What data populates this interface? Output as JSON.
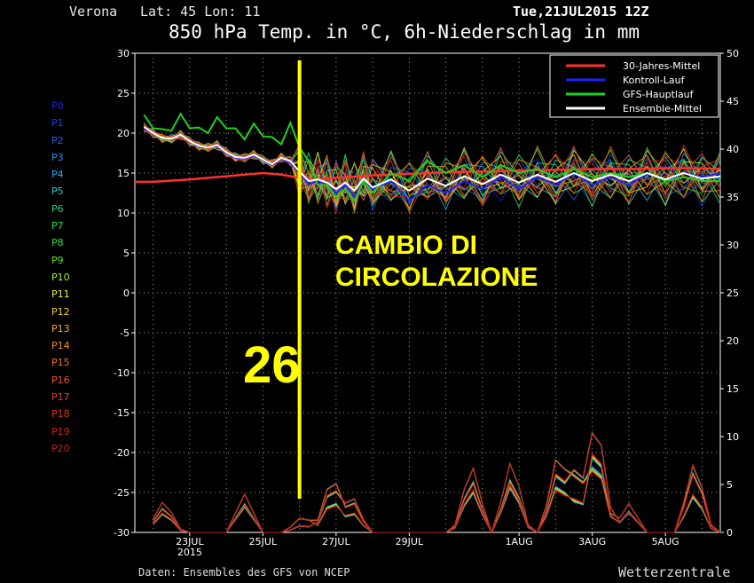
{
  "header": {
    "location": "Verona",
    "coords": "Lat: 45 Lon: 11",
    "date": "Tue,21JUL2015 12Z",
    "title": "850 hPa Temp. in °C, 6h-Niederschlag in mm"
  },
  "footer": {
    "source": "Daten: Ensembles des GFS von NCEP",
    "brand": "Wetterzentrale"
  },
  "annotations": {
    "big_number": "26",
    "text_line1": "CAMBIO DI",
    "text_line2": "CIRCOLAZIONE",
    "marker_date": "26JUL",
    "color": "#ffff00"
  },
  "members": [
    {
      "label": "P0",
      "color": "#2020d0"
    },
    {
      "label": "P1",
      "color": "#2040e0"
    },
    {
      "label": "P2",
      "color": "#2060f0"
    },
    {
      "label": "P3",
      "color": "#2090f0"
    },
    {
      "label": "P4",
      "color": "#20b0f0"
    },
    {
      "label": "P5",
      "color": "#20d0d0"
    },
    {
      "label": "P6",
      "color": "#20d080"
    },
    {
      "label": "P7",
      "color": "#20e050"
    },
    {
      "label": "P8",
      "color": "#30e030"
    },
    {
      "label": "P9",
      "color": "#60e020"
    },
    {
      "label": "P10",
      "color": "#a0f020"
    },
    {
      "label": "P11",
      "color": "#f0f020"
    },
    {
      "label": "P12",
      "color": "#f0d020"
    },
    {
      "label": "P13",
      "color": "#f0b020"
    },
    {
      "label": "P14",
      "color": "#f09020"
    },
    {
      "label": "P15",
      "color": "#f07020"
    },
    {
      "label": "P16",
      "color": "#f05020"
    },
    {
      "label": "P17",
      "color": "#e04020"
    },
    {
      "label": "P18",
      "color": "#e03020"
    },
    {
      "label": "P19",
      "color": "#d02020"
    },
    {
      "label": "P20",
      "color": "#c02020"
    }
  ],
  "chart_data": {
    "type": "line",
    "left_axis": {
      "label": "850 hPa Temp. (°C)",
      "range": [
        -30,
        30
      ],
      "ticks": [
        -30,
        -25,
        -20,
        -15,
        -10,
        -5,
        0,
        5,
        10,
        15,
        20,
        25,
        30
      ]
    },
    "right_axis": {
      "label": "6h-Niederschlag (mm)",
      "range": [
        0,
        50
      ],
      "ticks": [
        0,
        5,
        10,
        15,
        20,
        25,
        30,
        35,
        40,
        45,
        50
      ]
    },
    "x_ticks": [
      {
        "day": 23,
        "label": "23JUL",
        "sub": "2015"
      },
      {
        "day": 25,
        "label": "25JUL",
        "sub": ""
      },
      {
        "day": 27,
        "label": "27JUL",
        "sub": ""
      },
      {
        "day": 29,
        "label": "29JUL",
        "sub": ""
      },
      {
        "day": 32,
        "label": "1AUG",
        "sub": ""
      },
      {
        "day": 34,
        "label": "3AUG",
        "sub": ""
      },
      {
        "day": 36,
        "label": "5AUG",
        "sub": ""
      }
    ],
    "x_range_days": [
      21.5,
      37.5
    ],
    "x_unit": "day of July 2015",
    "grid": true,
    "legend_position": "top-right",
    "series": [
      {
        "name": "30-Jahres-Mittel",
        "color": "#ff3030",
        "x": [
          21.5,
          22,
          23,
          24,
          25,
          25.5,
          26,
          26.5,
          27,
          28,
          29,
          30,
          31,
          32,
          33,
          34,
          35,
          36,
          37,
          37.5
        ],
        "y": [
          13.9,
          13.9,
          14.2,
          14.6,
          15.0,
          14.8,
          14.4,
          14.2,
          14.4,
          14.7,
          14.9,
          15.1,
          15.2,
          15.3,
          15.4,
          15.5,
          15.5,
          15.6,
          15.6,
          15.5
        ]
      },
      {
        "name": "Kontroll-Lauf",
        "color": "#2020ff",
        "x": [
          21.75,
          22,
          22.25,
          22.5,
          22.75,
          23,
          23.25,
          23.5,
          23.75,
          24,
          24.25,
          24.5,
          24.75,
          25,
          25.25,
          25.5,
          25.75,
          26,
          26.25,
          26.5,
          26.75,
          27,
          27.25,
          27.5,
          27.75,
          28,
          28.5,
          29,
          29.5,
          30,
          30.5,
          31,
          31.5,
          32,
          32.5,
          33,
          33.5,
          34,
          34.5,
          35,
          35.5,
          36,
          36.5,
          37,
          37.5
        ],
        "y": [
          20.6,
          20.0,
          19.4,
          19.3,
          19.8,
          19.0,
          18.3,
          18.2,
          18.4,
          17.5,
          16.9,
          16.8,
          17.2,
          16.6,
          16.0,
          16.8,
          16.3,
          15.0,
          13.6,
          14.0,
          13.5,
          12.5,
          13.5,
          12.0,
          14.0,
          13.0,
          14.0,
          11.5,
          13.5,
          12.5,
          14.0,
          13.0,
          14.5,
          13.0,
          14.5,
          13.5,
          15.0,
          13.5,
          14.5,
          13.5,
          15.0,
          14.0,
          15.0,
          14.5,
          15.0
        ]
      },
      {
        "name": "GFS-Hauptlauf",
        "color": "#20d020",
        "x": [
          21.75,
          22,
          22.25,
          22.5,
          22.75,
          23,
          23.25,
          23.5,
          23.75,
          24,
          24.25,
          24.5,
          24.75,
          25,
          25.25,
          25.5,
          25.75,
          26,
          26.25,
          26.5,
          26.75,
          27,
          27.25,
          27.5,
          27.75,
          28,
          28.5,
          29,
          29.5,
          30,
          30.5,
          31,
          31.5,
          32,
          32.5,
          33,
          33.5,
          34,
          34.5,
          35,
          35.5,
          36,
          36.5,
          37,
          37.5
        ],
        "y": [
          22.3,
          20.6,
          20.5,
          20.3,
          22.4,
          20.6,
          20.7,
          20.0,
          22.0,
          20.6,
          20.6,
          19.2,
          21.2,
          19.6,
          19.5,
          18.6,
          21.3,
          18.2,
          16.5,
          13.5,
          13.5,
          12.0,
          13.0,
          11.5,
          14.0,
          12.5,
          15.0,
          14.0,
          16.5,
          15.0,
          16.0,
          14.5,
          16.0,
          15.0,
          15.5,
          14.5,
          15.5,
          14.5,
          15.0,
          14.5,
          15.0,
          14.0,
          14.5,
          14.0,
          14.0
        ]
      },
      {
        "name": "Ensemble-Mittel",
        "color": "#ffffff",
        "x": [
          21.75,
          22,
          22.25,
          22.5,
          22.75,
          23,
          23.25,
          23.5,
          23.75,
          24,
          24.25,
          24.5,
          24.75,
          25,
          25.25,
          25.5,
          25.75,
          26,
          26.25,
          26.5,
          26.75,
          27,
          27.25,
          27.5,
          27.75,
          28,
          28.5,
          29,
          29.5,
          30,
          30.5,
          31,
          31.5,
          32,
          32.5,
          33,
          33.5,
          34,
          34.5,
          35,
          35.5,
          36,
          36.5,
          37,
          37.5
        ],
        "y": [
          20.8,
          20.0,
          19.4,
          19.3,
          19.8,
          19.0,
          18.4,
          18.2,
          18.5,
          17.6,
          17.0,
          16.9,
          17.3,
          16.7,
          16.1,
          16.9,
          16.5,
          15.2,
          14.0,
          14.2,
          13.8,
          13.0,
          13.8,
          12.8,
          14.3,
          13.2,
          14.2,
          12.8,
          14.3,
          13.4,
          14.6,
          13.6,
          14.8,
          13.8,
          14.8,
          13.9,
          15.0,
          14.0,
          14.8,
          14.0,
          15.0,
          14.2,
          15.0,
          14.3,
          14.6
        ]
      }
    ],
    "precipitation_peaks_mm": [
      {
        "x": 22.3,
        "y": 3.5
      },
      {
        "x": 24.5,
        "y": 4.0
      },
      {
        "x": 26.1,
        "y": 2.0
      },
      {
        "x": 26.9,
        "y": 6.5
      },
      {
        "x": 27.4,
        "y": 4.5
      },
      {
        "x": 30.7,
        "y": 7.5
      },
      {
        "x": 31.8,
        "y": 8.0
      },
      {
        "x": 33.1,
        "y": 9.5
      },
      {
        "x": 33.6,
        "y": 8.5
      },
      {
        "x": 34.1,
        "y": 13.0
      },
      {
        "x": 35.0,
        "y": 3.0
      },
      {
        "x": 36.8,
        "y": 8.0
      }
    ]
  }
}
